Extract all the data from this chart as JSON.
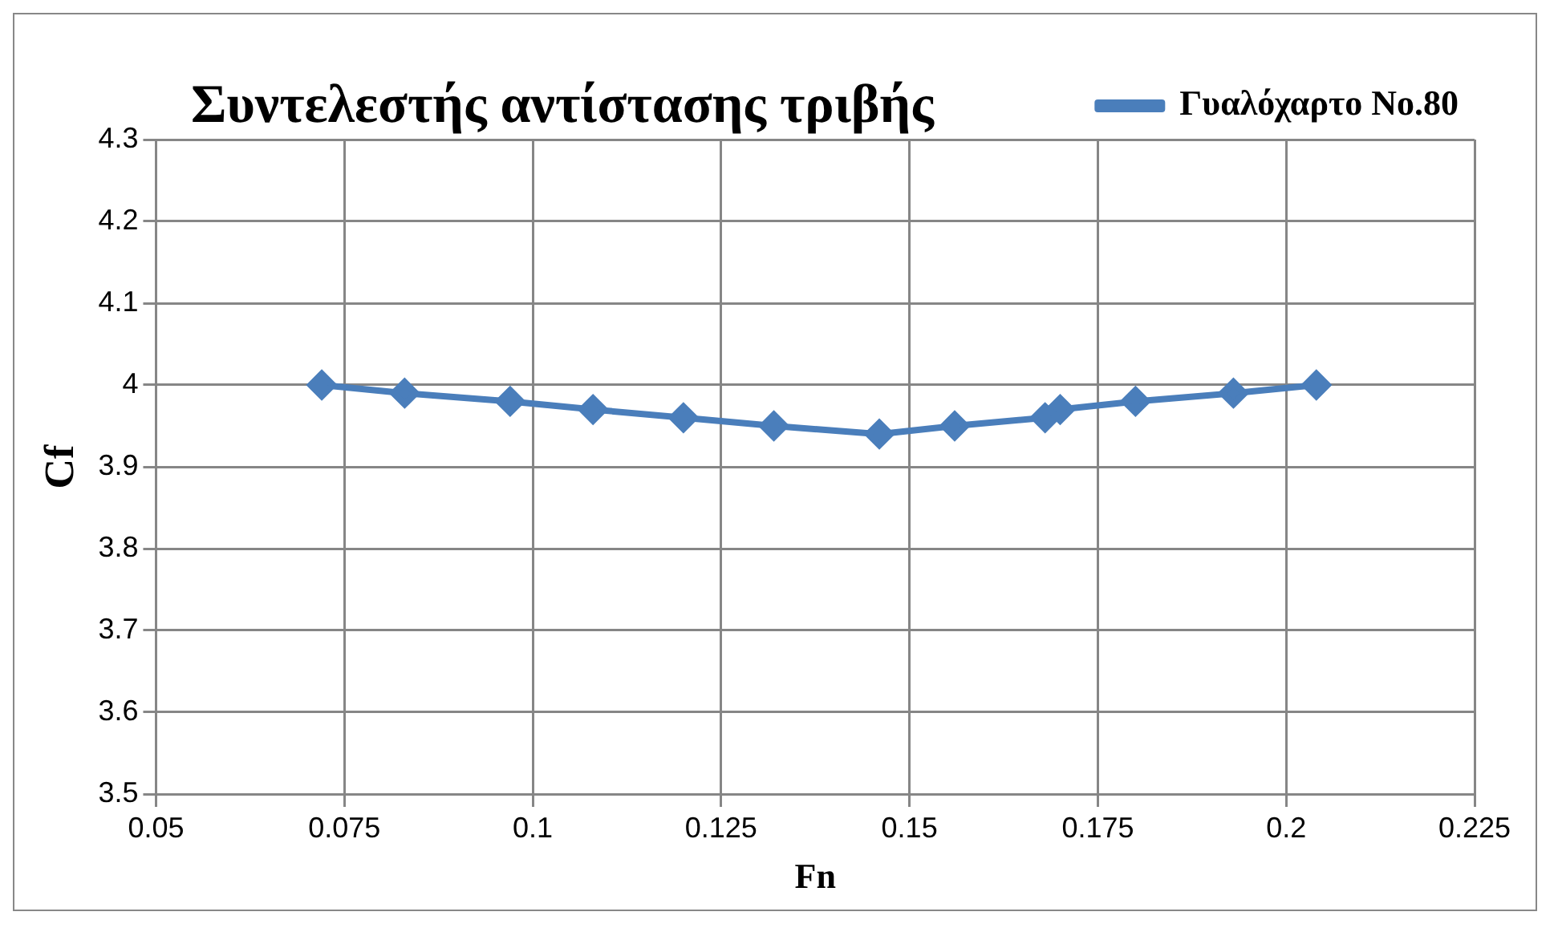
{
  "chart_data": {
    "type": "line",
    "title": "Συντελεστής αντίστασης τριβής",
    "xlabel": "Fn",
    "ylabel": "Cf",
    "x": [
      0.072,
      0.083,
      0.097,
      0.108,
      0.12,
      0.132,
      0.146,
      0.156,
      0.168,
      0.17,
      0.18,
      0.193,
      0.204
    ],
    "series": [
      {
        "name": "Γυαλόχαρτο No.80",
        "color": "#4a7ebb",
        "values": [
          4.0,
          3.99,
          3.98,
          3.97,
          3.96,
          3.95,
          3.94,
          3.95,
          3.96,
          3.97,
          3.98,
          3.99,
          4.0
        ]
      }
    ],
    "xlim": [
      0.05,
      0.225
    ],
    "xticks": [
      0.05,
      0.075,
      0.1,
      0.125,
      0.15,
      0.175,
      0.2,
      0.225
    ],
    "ylim": [
      3.5,
      4.3
    ],
    "yticks": [
      3.5,
      3.6,
      3.7,
      3.8,
      3.9,
      4,
      4.1,
      4.2,
      4.3
    ],
    "grid": true,
    "legend": "top right",
    "marker": "diamond",
    "line_style": "solid"
  }
}
